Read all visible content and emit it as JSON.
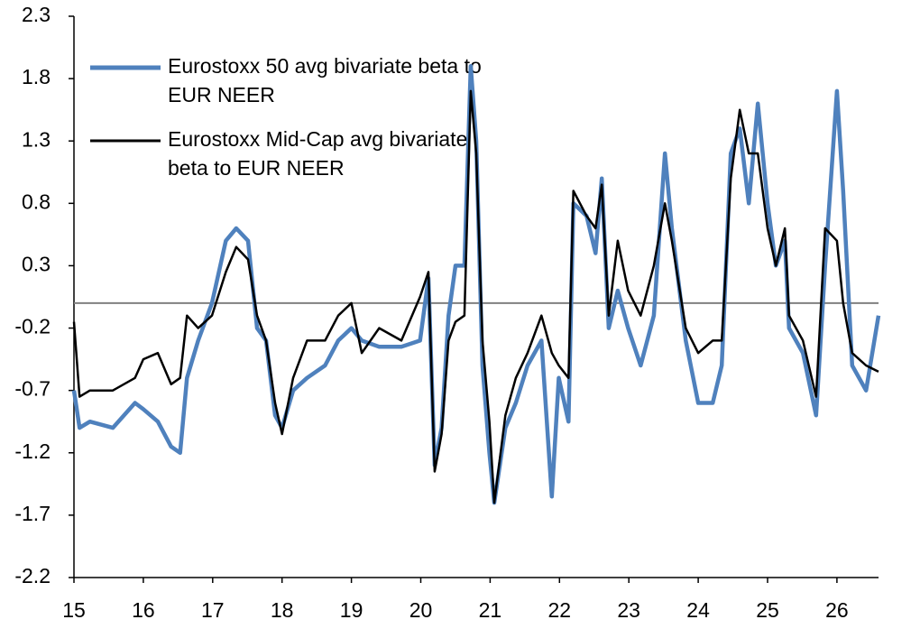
{
  "chart_data": {
    "type": "line",
    "legend_position": "upper left",
    "xlim": [
      15,
      26.6
    ],
    "xticks": [
      15,
      16,
      17,
      18,
      19,
      20,
      21,
      22,
      23,
      24,
      25,
      26
    ],
    "ylim": [
      -2.2,
      2.3
    ],
    "yticks": [
      -2.2,
      -1.7,
      -1.2,
      -0.7,
      -0.2,
      0.3,
      0.8,
      1.3,
      1.8,
      2.3
    ],
    "x": [
      15.0,
      15.08,
      15.23,
      15.56,
      15.88,
      16.0,
      16.21,
      16.4,
      16.53,
      16.63,
      16.79,
      16.99,
      17.19,
      17.34,
      17.51,
      17.64,
      17.77,
      17.9,
      18.0,
      18.16,
      18.36,
      18.62,
      18.81,
      19.0,
      19.15,
      19.4,
      19.72,
      19.99,
      20.11,
      20.2,
      20.3,
      20.4,
      20.5,
      20.63,
      20.72,
      20.8,
      20.89,
      20.99,
      21.06,
      21.22,
      21.37,
      21.54,
      21.74,
      21.89,
      21.99,
      22.13,
      22.2,
      22.39,
      22.52,
      22.61,
      22.71,
      22.84,
      22.99,
      23.17,
      23.36,
      23.52,
      23.62,
      23.82,
      24.0,
      24.21,
      24.34,
      24.47,
      24.6,
      24.73,
      24.86,
      25.0,
      25.12,
      25.25,
      25.31,
      25.51,
      25.7,
      25.83,
      26.0,
      26.09,
      26.22,
      26.42,
      26.6
    ],
    "series": [
      {
        "name": "Eurostoxx 50 avg bivariate beta to EUR NEER",
        "color": "#4f81bd",
        "values": [
          -0.7,
          -1.0,
          -0.95,
          -1.0,
          -0.8,
          -0.85,
          -0.95,
          -1.15,
          -1.2,
          -0.6,
          -0.3,
          0.0,
          0.5,
          0.6,
          0.5,
          -0.2,
          -0.3,
          -0.9,
          -1.0,
          -0.7,
          -0.6,
          -0.5,
          -0.3,
          -0.2,
          -0.3,
          -0.35,
          -0.35,
          -0.3,
          0.2,
          -1.3,
          -1.0,
          -0.1,
          0.3,
          0.3,
          1.9,
          1.3,
          -0.5,
          -1.2,
          -1.6,
          -1.0,
          -0.8,
          -0.5,
          -0.3,
          -1.55,
          -0.6,
          -0.95,
          0.8,
          0.7,
          0.4,
          1.0,
          -0.2,
          0.1,
          -0.2,
          -0.5,
          -0.1,
          1.2,
          0.6,
          -0.3,
          -0.8,
          -0.8,
          -0.5,
          1.2,
          1.4,
          0.8,
          1.6,
          0.8,
          0.3,
          0.5,
          -0.2,
          -0.4,
          -0.9,
          0.3,
          1.7,
          0.9,
          -0.5,
          -0.7,
          -0.1
        ]
      },
      {
        "name": "Eurostoxx Mid-Cap avg bivariate beta to EUR NEER",
        "color": "#000000",
        "values": [
          -0.15,
          -0.75,
          -0.7,
          -0.7,
          -0.6,
          -0.45,
          -0.4,
          -0.65,
          -0.6,
          -0.1,
          -0.2,
          -0.1,
          0.25,
          0.45,
          0.35,
          -0.1,
          -0.3,
          -0.8,
          -1.05,
          -0.6,
          -0.3,
          -0.3,
          -0.1,
          0.0,
          -0.4,
          -0.2,
          -0.3,
          0.05,
          0.25,
          -1.35,
          -1.05,
          -0.3,
          -0.15,
          -0.1,
          1.7,
          1.2,
          -0.3,
          -0.95,
          -1.6,
          -0.9,
          -0.6,
          -0.4,
          -0.1,
          -0.4,
          -0.5,
          -0.6,
          0.9,
          0.7,
          0.6,
          0.95,
          -0.1,
          0.5,
          0.1,
          -0.1,
          0.3,
          0.8,
          0.5,
          -0.2,
          -0.4,
          -0.3,
          -0.3,
          1.0,
          1.55,
          1.2,
          1.2,
          0.6,
          0.3,
          0.6,
          -0.1,
          -0.3,
          -0.75,
          0.6,
          0.5,
          0.0,
          -0.4,
          -0.5,
          -0.55
        ]
      }
    ]
  }
}
